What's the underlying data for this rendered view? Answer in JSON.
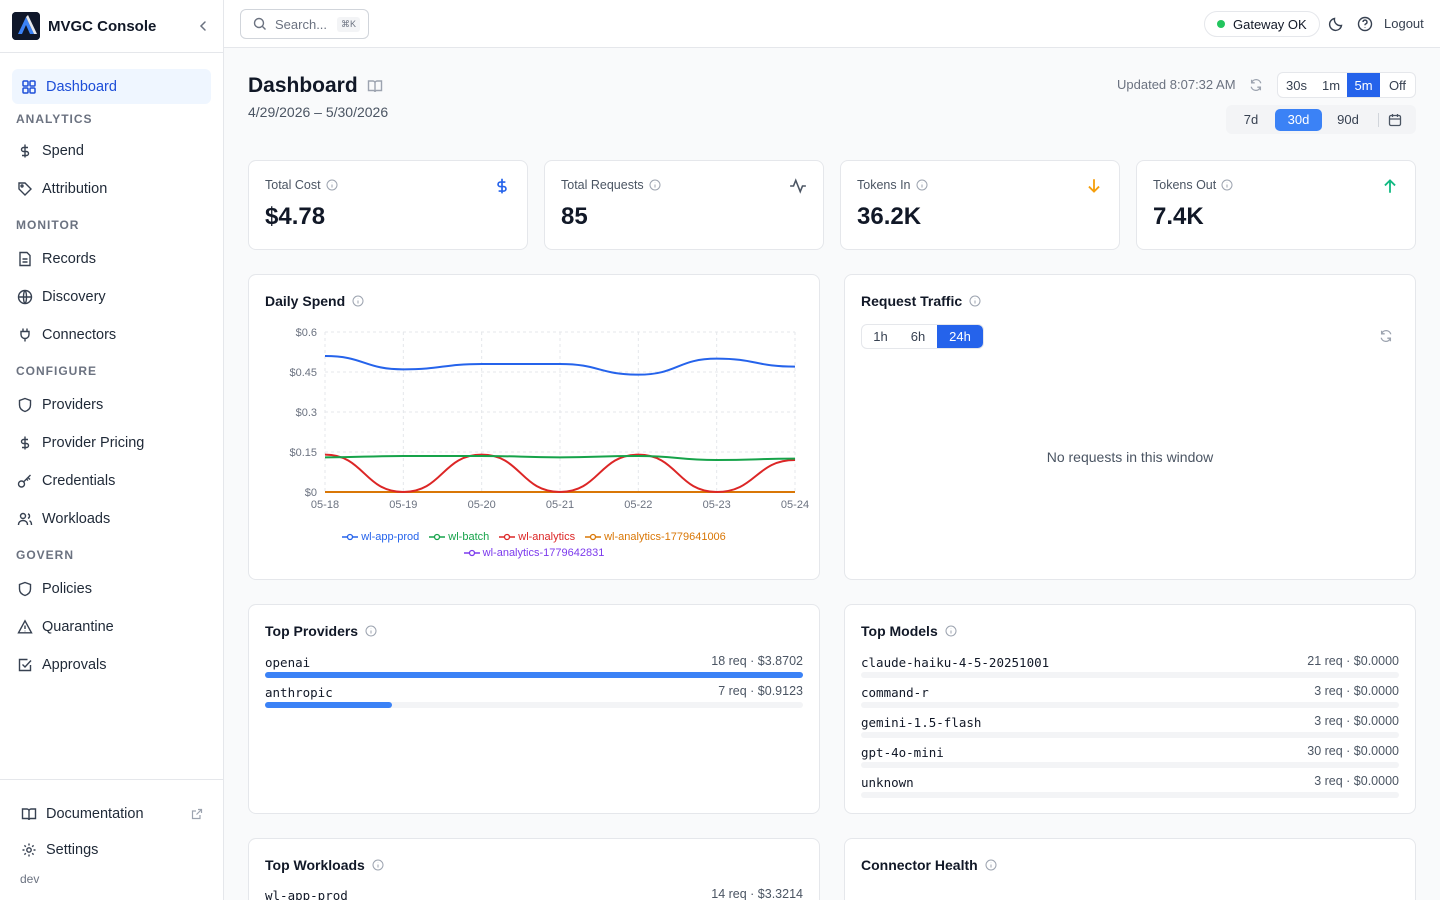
{
  "app": {
    "name": "MVGC Console",
    "env": "dev"
  },
  "sidebar": {
    "dashboard": "Dashboard",
    "sections": {
      "analytics": "ANALYTICS",
      "monitor": "MONITOR",
      "configure": "CONFIGURE",
      "govern": "GOVERN"
    },
    "items": {
      "spend": "Spend",
      "attribution": "Attribution",
      "records": "Records",
      "discovery": "Discovery",
      "connectors": "Connectors",
      "providers": "Providers",
      "provider_pricing": "Provider Pricing",
      "credentials": "Credentials",
      "workloads": "Workloads",
      "policies": "Policies",
      "quarantine": "Quarantine",
      "approvals": "Approvals"
    },
    "bottom": {
      "documentation": "Documentation",
      "settings": "Settings"
    }
  },
  "topbar": {
    "search_placeholder": "Search...",
    "shortcut": "⌘K",
    "gateway_status": "Gateway OK",
    "logout": "Logout"
  },
  "header": {
    "title": "Dashboard",
    "date_range": "4/29/2026 – 5/30/2026",
    "updated": "Updated 8:07:32 AM",
    "refresh_options": [
      "30s",
      "1m",
      "5m",
      "Off"
    ],
    "refresh_selected": "5m",
    "range_options": [
      "7d",
      "30d",
      "90d"
    ],
    "range_selected": "30d"
  },
  "kpis": [
    {
      "label": "Total Cost",
      "value": "$4.78",
      "icon": "dollar-icon",
      "color": "#2563eb"
    },
    {
      "label": "Total Requests",
      "value": "85",
      "icon": "activity-icon",
      "color": "#4b5563"
    },
    {
      "label": "Tokens In",
      "value": "36.2K",
      "icon": "arrow-down-icon",
      "color": "#f59e0b"
    },
    {
      "label": "Tokens Out",
      "value": "7.4K",
      "icon": "arrow-up-icon",
      "color": "#10b981"
    }
  ],
  "daily_spend": {
    "title": "Daily Spend",
    "chart_data": {
      "type": "line",
      "categories": [
        "05-18",
        "05-19",
        "05-20",
        "05-21",
        "05-22",
        "05-23",
        "05-24"
      ],
      "y_ticks": [
        "$0",
        "$0.15",
        "$0.3",
        "$0.45",
        "$0.6"
      ],
      "ylim": [
        0,
        0.6
      ],
      "grid": true,
      "legend_position": "bottom",
      "series": [
        {
          "name": "wl-app-prod",
          "color": "#2563eb",
          "values": [
            0.51,
            0.46,
            0.48,
            0.48,
            0.44,
            0.5,
            0.47
          ]
        },
        {
          "name": "wl-batch",
          "color": "#16a34a",
          "values": [
            0.13,
            0.135,
            0.135,
            0.13,
            0.135,
            0.12,
            0.125
          ]
        },
        {
          "name": "wl-analytics",
          "color": "#dc2626",
          "values": [
            0.14,
            0.0,
            0.14,
            0.0,
            0.14,
            0.0,
            0.12
          ]
        },
        {
          "name": "wl-analytics-1779641006",
          "color": "#d97706",
          "values": [
            0,
            0,
            0,
            0,
            0,
            0,
            0
          ]
        },
        {
          "name": "wl-analytics-1779642831",
          "color": "#7c3aed",
          "values": [
            0,
            0,
            0,
            0,
            0,
            0,
            0
          ]
        }
      ]
    }
  },
  "request_traffic": {
    "title": "Request Traffic",
    "windows": [
      "1h",
      "6h",
      "24h"
    ],
    "selected": "24h",
    "empty_message": "No requests in this window"
  },
  "top_providers": {
    "title": "Top Providers",
    "rows": [
      {
        "name": "openai",
        "meta": "18 req · $3.8702",
        "fraction": 1.0
      },
      {
        "name": "anthropic",
        "meta": "7 req · $0.9123",
        "fraction": 0.236
      }
    ]
  },
  "top_models": {
    "title": "Top Models",
    "rows": [
      {
        "name": "claude-haiku-4-5-20251001",
        "meta": "21 req · $0.0000",
        "fraction": 0
      },
      {
        "name": "command-r",
        "meta": "3 req · $0.0000",
        "fraction": 0
      },
      {
        "name": "gemini-1.5-flash",
        "meta": "3 req · $0.0000",
        "fraction": 0
      },
      {
        "name": "gpt-4o-mini",
        "meta": "30 req · $0.0000",
        "fraction": 0
      },
      {
        "name": "unknown",
        "meta": "3 req · $0.0000",
        "fraction": 0
      }
    ]
  },
  "top_workloads": {
    "title": "Top Workloads",
    "rows": [
      {
        "name": "wl-app-prod",
        "meta": "14 req · $3.3214"
      }
    ]
  },
  "connector_health": {
    "title": "Connector Health"
  }
}
